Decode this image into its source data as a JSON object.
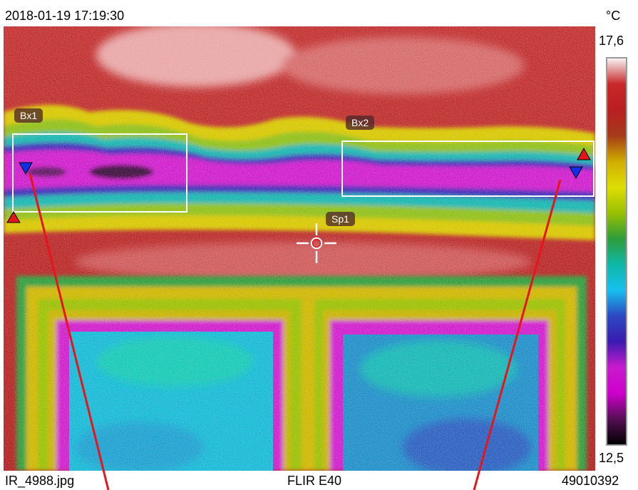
{
  "header": {
    "timestamp": "2018-01-19 17:19:30",
    "unit": "°C"
  },
  "scale": {
    "max": "17,6",
    "min": "12,5",
    "palette": [
      "#f6f2f2",
      "#c82828",
      "#b81f22",
      "#a53b19",
      "#cfae00",
      "#dede00",
      "#9ac000",
      "#2e9d3a",
      "#10b7a6",
      "#16c0ee",
      "#2c4ac2",
      "#3a1bb0",
      "#c71bcc",
      "#cf00cc",
      "#560f55",
      "#000000"
    ]
  },
  "measurements": {
    "box1": "Bx1",
    "box2": "Bx2",
    "spot1": "Sp1"
  },
  "footer": {
    "filename": "IR_4988.jpg",
    "camera": "FLIR E40",
    "serial": "49010392"
  },
  "colors": {
    "annotation_line": "#e8141c",
    "max_marker": "#e8141c",
    "min_marker": "#1030e8"
  }
}
